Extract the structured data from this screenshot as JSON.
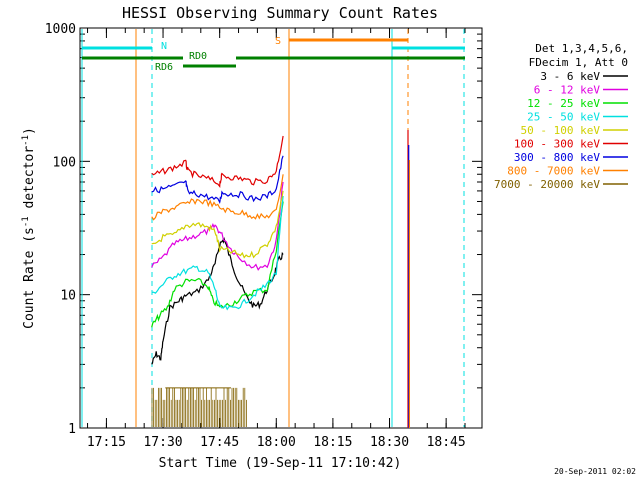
{
  "chart_data": {
    "type": "line",
    "title": "HESSI Observing Summary Count Rates",
    "xlabel": "Start Time (19-Sep-11 17:10:42)",
    "ylabel": "Count Rate (s⁻¹ detector⁻¹)",
    "ylabel_parts": {
      "pre": "Count Rate (s",
      "sup1": "-1",
      "mid": " detector",
      "sup2": "-1",
      "post": ")"
    },
    "y_scale": "log",
    "ylim": [
      1,
      1000
    ],
    "xlim_minutes": [
      17.1,
      17.9
    ],
    "x_ticks": [
      {
        "m": 17.25,
        "label": "17:15"
      },
      {
        "m": 17.5,
        "label": "17:30"
      },
      {
        "m": 17.75,
        "label": "17:45"
      },
      {
        "m": 18.0,
        "label": "18:00"
      },
      {
        "m": 18.25,
        "label": "18:15"
      },
      {
        "m": 18.5,
        "label": "18:30"
      },
      {
        "m": 18.75,
        "label": "18:45"
      }
    ],
    "y_ticks": [
      {
        "v": 1,
        "label": "1"
      },
      {
        "v": 10,
        "label": "10"
      },
      {
        "v": 100,
        "label": "100"
      },
      {
        "v": 1000,
        "label": "1000"
      }
    ],
    "grid": false,
    "legend_position": "right",
    "legend_header": [
      "Det 1,3,4,5,6,",
      "FDecim 1, Att 0"
    ],
    "series": [
      {
        "name": "3 - 6 keV",
        "color": "#000000",
        "points": [
          [
            17.45,
            3.0
          ],
          [
            17.47,
            3.6
          ],
          [
            17.49,
            3.3
          ],
          [
            17.5,
            4.5
          ],
          [
            17.53,
            8.0
          ],
          [
            17.57,
            9.0
          ],
          [
            17.6,
            9.8
          ],
          [
            17.65,
            10.5
          ],
          [
            17.7,
            13.0
          ],
          [
            17.73,
            17.0
          ],
          [
            17.75,
            24.0
          ],
          [
            17.77,
            26.0
          ],
          [
            17.8,
            18.0
          ],
          [
            17.83,
            13.0
          ],
          [
            17.87,
            9.5
          ],
          [
            17.9,
            8.2
          ],
          [
            17.93,
            8.5
          ],
          [
            17.96,
            11.0
          ],
          [
            17.99,
            14.0
          ],
          [
            18.01,
            18.0
          ],
          [
            18.03,
            20.0
          ]
        ]
      },
      {
        "name": "6 - 12 keV",
        "color": "#e000e0",
        "points": [
          [
            17.45,
            16.0
          ],
          [
            17.5,
            19.0
          ],
          [
            17.55,
            24.0
          ],
          [
            17.6,
            26.0
          ],
          [
            17.65,
            28.0
          ],
          [
            17.7,
            30.0
          ],
          [
            17.73,
            33.0
          ],
          [
            17.76,
            28.0
          ],
          [
            17.8,
            22.0
          ],
          [
            17.84,
            19.0
          ],
          [
            17.9,
            16.0
          ],
          [
            17.96,
            16.5
          ],
          [
            18.0,
            25.0
          ],
          [
            18.03,
            70.0
          ]
        ]
      },
      {
        "name": "12 - 25 keV",
        "color": "#00e000",
        "points": [
          [
            17.45,
            5.8
          ],
          [
            17.48,
            6.8
          ],
          [
            17.52,
            8.0
          ],
          [
            17.55,
            11.0
          ],
          [
            17.6,
            12.5
          ],
          [
            17.65,
            12.8
          ],
          [
            17.7,
            11.5
          ],
          [
            17.72,
            9.0
          ],
          [
            17.75,
            8.0
          ],
          [
            17.8,
            8.5
          ],
          [
            17.85,
            9.5
          ],
          [
            17.9,
            10.5
          ],
          [
            17.96,
            11.0
          ],
          [
            18.0,
            22.0
          ],
          [
            18.03,
            50.0
          ]
        ]
      },
      {
        "name": "25 - 50 keV",
        "color": "#00e0e0",
        "points": [
          [
            17.45,
            10.0
          ],
          [
            17.5,
            12.0
          ],
          [
            17.55,
            14.0
          ],
          [
            17.6,
            15.0
          ],
          [
            17.65,
            16.0
          ],
          [
            17.7,
            14.5
          ],
          [
            17.73,
            11.0
          ],
          [
            17.75,
            8.0
          ],
          [
            17.8,
            7.8
          ],
          [
            17.85,
            8.5
          ],
          [
            17.9,
            10.0
          ],
          [
            17.95,
            11.5
          ],
          [
            18.0,
            14.5
          ],
          [
            18.03,
            55.0
          ]
        ]
      },
      {
        "name": "50 - 100 keV",
        "color": "#d0d000",
        "points": [
          [
            17.45,
            23.0
          ],
          [
            17.5,
            27.0
          ],
          [
            17.55,
            28.0
          ],
          [
            17.6,
            33.0
          ],
          [
            17.65,
            34.0
          ],
          [
            17.7,
            32.0
          ],
          [
            17.73,
            30.0
          ],
          [
            17.75,
            22.0
          ],
          [
            17.8,
            21.0
          ],
          [
            17.85,
            19.5
          ],
          [
            17.9,
            20.0
          ],
          [
            17.96,
            24.0
          ],
          [
            18.0,
            32.0
          ],
          [
            18.03,
            60.0
          ]
        ]
      },
      {
        "name": "100 - 300 keV",
        "color": "#e00000",
        "points": [
          [
            17.45,
            78.0
          ],
          [
            17.5,
            84.0
          ],
          [
            17.55,
            90.0
          ],
          [
            17.6,
            98.0
          ],
          [
            17.61,
            84.0
          ],
          [
            17.65,
            78.0
          ],
          [
            17.7,
            74.0
          ],
          [
            17.75,
            68.0
          ],
          [
            17.76,
            78.0
          ],
          [
            17.8,
            76.0
          ],
          [
            17.85,
            74.0
          ],
          [
            17.9,
            70.0
          ],
          [
            17.96,
            72.0
          ],
          [
            18.0,
            85.0
          ],
          [
            18.03,
            155.0
          ]
        ]
      },
      {
        "name": "300 - 800 keV",
        "color": "#0000e0",
        "points": [
          [
            17.45,
            60.0
          ],
          [
            17.5,
            62.0
          ],
          [
            17.55,
            65.0
          ],
          [
            17.6,
            70.0
          ],
          [
            17.61,
            58.0
          ],
          [
            17.65,
            57.0
          ],
          [
            17.7,
            54.0
          ],
          [
            17.75,
            50.0
          ],
          [
            17.76,
            58.0
          ],
          [
            17.8,
            57.0
          ],
          [
            17.85,
            56.0
          ],
          [
            17.9,
            52.0
          ],
          [
            17.96,
            55.0
          ],
          [
            18.0,
            62.0
          ],
          [
            18.03,
            110.0
          ]
        ]
      },
      {
        "name": "800 - 7000 keV",
        "color": "#ff8000",
        "points": [
          [
            17.45,
            37.0
          ],
          [
            17.5,
            42.0
          ],
          [
            17.55,
            45.0
          ],
          [
            17.6,
            48.0
          ],
          [
            17.65,
            51.0
          ],
          [
            17.7,
            49.0
          ],
          [
            17.75,
            45.0
          ],
          [
            17.8,
            42.0
          ],
          [
            17.85,
            41.0
          ],
          [
            17.9,
            39.0
          ],
          [
            17.95,
            38.0
          ],
          [
            18.0,
            42.0
          ],
          [
            18.03,
            80.0
          ]
        ]
      },
      {
        "name": "7000 - 20000 keV",
        "color": "#806000",
        "points": [
          [
            17.51,
            2.0
          ],
          [
            17.55,
            2.0
          ],
          [
            17.6,
            2.0
          ],
          [
            17.65,
            2.0
          ],
          [
            17.7,
            2.0
          ],
          [
            17.75,
            2.0
          ],
          [
            17.8,
            2.0
          ]
        ]
      }
    ],
    "annotations": [
      {
        "label": "N",
        "color": "#00e0e0"
      },
      {
        "label": "RD0",
        "color": "#008000"
      },
      {
        "label": "RD6",
        "color": "#008000"
      },
      {
        "label": "S",
        "color": "#ff8000"
      }
    ]
  },
  "footer_date": "20-Sep-2011 02:02"
}
